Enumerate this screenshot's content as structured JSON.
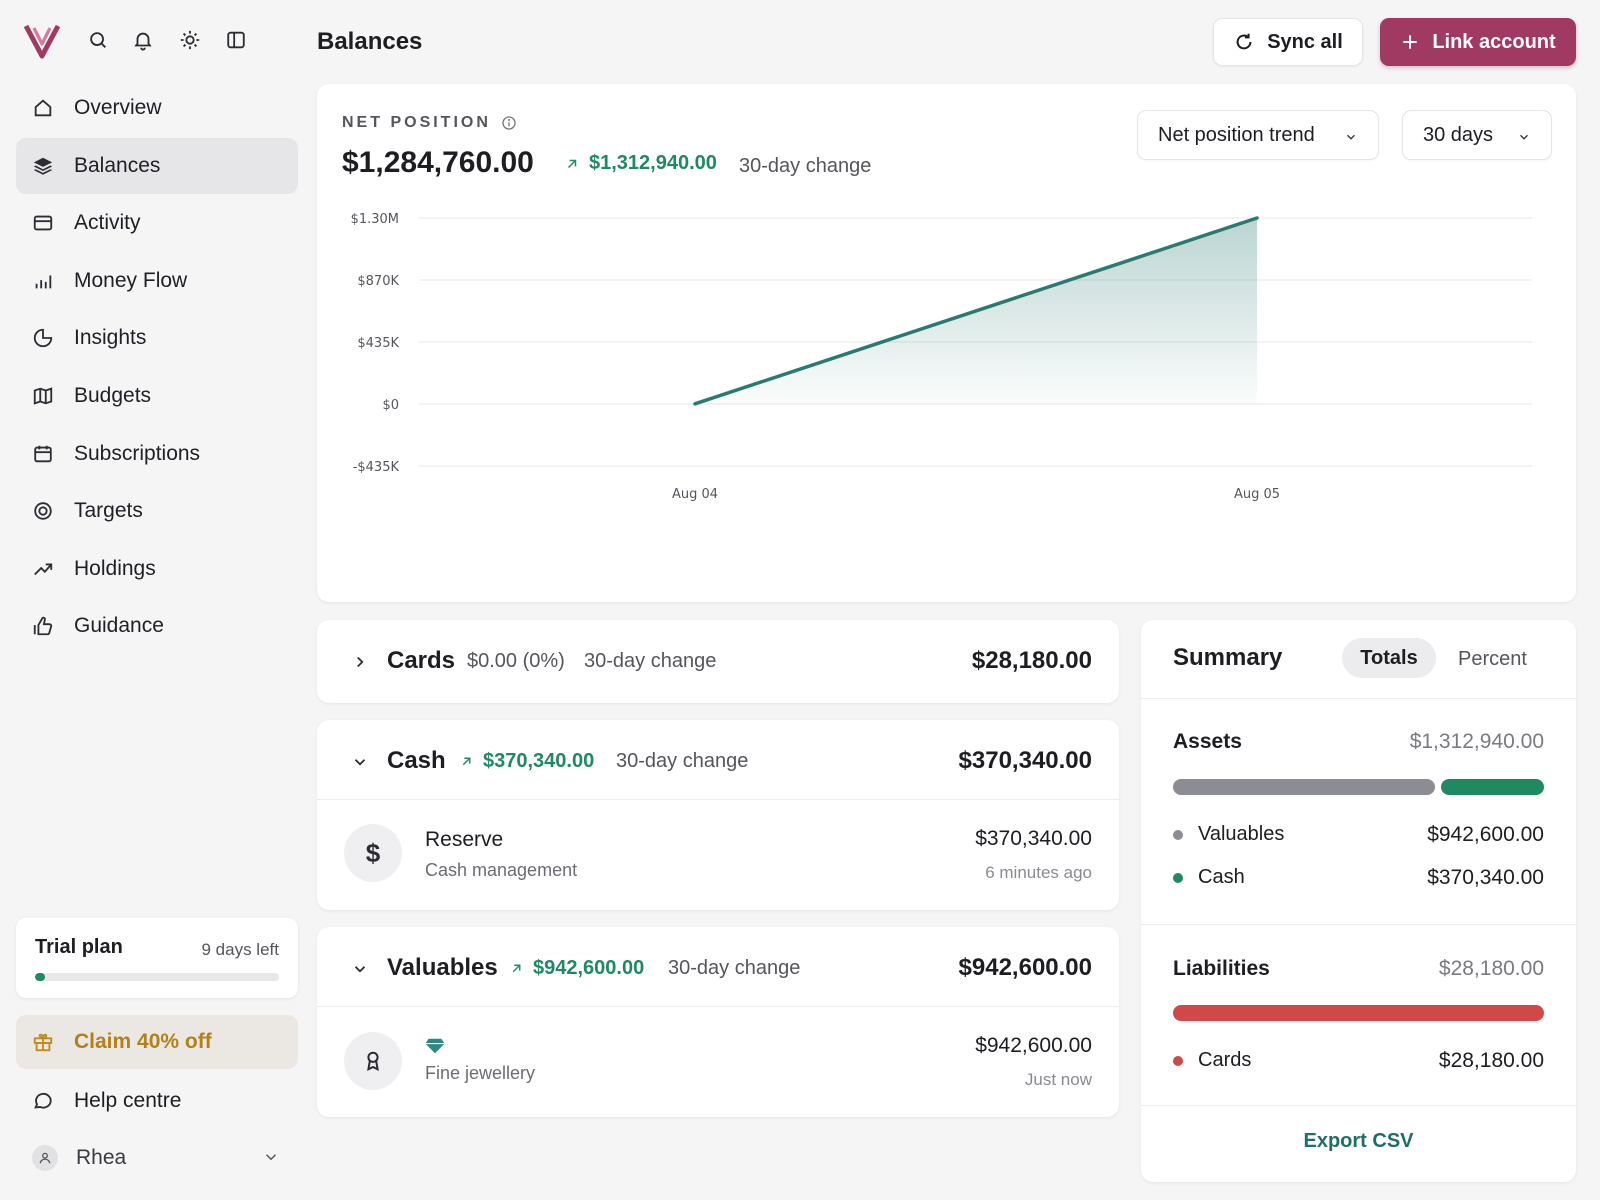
{
  "header": {
    "title": "Balances",
    "sync_label": "Sync all",
    "link_label": "Link account"
  },
  "sidebar": {
    "items": [
      {
        "label": "Overview",
        "icon": "home-icon"
      },
      {
        "label": "Balances",
        "icon": "layers-icon",
        "active": true
      },
      {
        "label": "Activity",
        "icon": "card-icon"
      },
      {
        "label": "Money Flow",
        "icon": "bar-chart-icon"
      },
      {
        "label": "Insights",
        "icon": "pie-chart-icon"
      },
      {
        "label": "Budgets",
        "icon": "map-icon"
      },
      {
        "label": "Subscriptions",
        "icon": "calendar-icon"
      },
      {
        "label": "Targets",
        "icon": "target-icon"
      },
      {
        "label": "Holdings",
        "icon": "trending-up-icon"
      },
      {
        "label": "Guidance",
        "icon": "hand-icon"
      }
    ],
    "trial": {
      "title": "Trial plan",
      "days_left": "9 days left",
      "progress": 0.03
    },
    "claim_label": "Claim 40% off",
    "help_label": "Help centre",
    "user_name": "Rhea"
  },
  "net_position": {
    "label": "NET POSITION",
    "value": "$1,284,760.00",
    "change": "$1,312,940.00",
    "change_label": "30-day change",
    "view_select": "Net position trend",
    "range_select": "30 days"
  },
  "chart_data": {
    "type": "area",
    "x": [
      "Aug 04",
      "Aug 05"
    ],
    "series": [
      {
        "values": [
          0,
          1300000
        ]
      }
    ],
    "y_ticks": [
      "$1.30M",
      "$870K",
      "$435K",
      "$0",
      "-$435K"
    ],
    "ylim": [
      -435000,
      1300000
    ],
    "line_color": "#2b7a72",
    "grid": true
  },
  "accounts": {
    "cards": {
      "name": "Cards",
      "change": "$0.00 (0%)",
      "change_label": "30-day change",
      "total": "$28,180.00"
    },
    "cash": {
      "name": "Cash",
      "change": "$370,340.00",
      "change_label": "30-day change",
      "total": "$370,340.00",
      "row": {
        "icon_glyph": "$",
        "name": "Reserve",
        "sub": "Cash management",
        "amount": "$370,340.00",
        "time": "6 minutes ago"
      }
    },
    "valuables": {
      "name": "Valuables",
      "change": "$942,600.00",
      "change_label": "30-day change",
      "total": "$942,600.00",
      "row": {
        "name_icon": "diamond-icon",
        "sub": "Fine jewellery",
        "amount": "$942,600.00",
        "time": "Just now"
      }
    }
  },
  "summary": {
    "title": "Summary",
    "tab_totals": "Totals",
    "tab_percent": "Percent",
    "assets": {
      "title": "Assets",
      "total": "$1,312,940.00",
      "items": [
        {
          "name": "Valuables",
          "value": "$942,600.00",
          "color": "#8c8c94",
          "share": 0.718
        },
        {
          "name": "Cash",
          "value": "$370,340.00",
          "color": "#1f8a62",
          "share": 0.282
        }
      ]
    },
    "liabilities": {
      "title": "Liabilities",
      "total": "$28,180.00",
      "items": [
        {
          "name": "Cards",
          "value": "$28,180.00",
          "color": "#d04848",
          "share": 1
        }
      ]
    },
    "export_label": "Export CSV"
  }
}
